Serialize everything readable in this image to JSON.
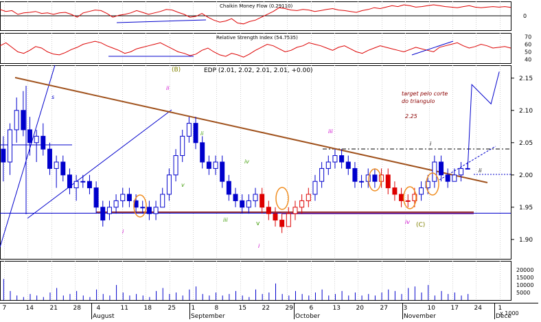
{
  "colors": {
    "grid": "#cfcfcf",
    "border": "#000000",
    "up_fill": "#ffffff",
    "up_stroke": "#0000cc",
    "down_fill": "#0000cc",
    "red": "#dd0000",
    "trend": "#a0521d",
    "support": "#9b3a3a",
    "purple_line": "#7030a0",
    "blue": "#0000cc",
    "circle": "#f08c1e",
    "magenta": "#cc00cc",
    "green": "#3a9a00",
    "olive": "#808000",
    "target_text": "#8b0000"
  },
  "chart_data": [
    {
      "id": "cmf",
      "type": "line",
      "title": "Chaikin Money Flow (0.29110)",
      "y_ticks": [
        "0"
      ],
      "ylim": [
        -0.5,
        0.5
      ],
      "series": [
        {
          "values": [
            0.22,
            0.15,
            0.18,
            0.05,
            0.1,
            0.12,
            0.15,
            0.08,
            0.1,
            0.05,
            0.1,
            0.12,
            0.05,
            -0.05,
            0.1,
            0.15,
            0.2,
            0.18,
            0.08,
            -0.05,
            0.02,
            0.05,
            0.1,
            0.18,
            0.12,
            0.05,
            0.1,
            0.15,
            0.22,
            0.2,
            0.12,
            0.05,
            -0.05,
            -0.02,
            0.08,
            -0.05,
            -0.15,
            -0.22,
            -0.18,
            -0.1,
            -0.25,
            -0.28,
            -0.2,
            -0.15,
            -0.05,
            0.05,
            0.15,
            0.28,
            0.25,
            0.2,
            0.18,
            0.22,
            0.2,
            0.15,
            0.18,
            0.22,
            0.25,
            0.2,
            0.18,
            0.15,
            0.12,
            0.18,
            0.22,
            0.28,
            0.25,
            0.3,
            0.35,
            0.32,
            0.38,
            0.35,
            0.3,
            0.32,
            0.35,
            0.38,
            0.35,
            0.32,
            0.3,
            0.28,
            0.32,
            0.35,
            0.3,
            0.28,
            0.3,
            0.32,
            0.3,
            0.32,
            0.29
          ]
        }
      ]
    },
    {
      "id": "rsi",
      "type": "line",
      "title": "Relative Strength Index (54.7535)",
      "y_ticks": [
        "70",
        "60",
        "50",
        "40"
      ],
      "ylim": [
        35,
        75
      ],
      "series": [
        {
          "values": [
            58,
            62,
            56,
            50,
            48,
            52,
            57,
            55,
            50,
            47,
            46,
            49,
            53,
            56,
            60,
            62,
            64,
            62,
            58,
            55,
            52,
            48,
            50,
            54,
            56,
            58,
            60,
            62,
            58,
            54,
            50,
            48,
            45,
            47,
            52,
            55,
            50,
            46,
            44,
            48,
            46,
            43,
            47,
            52,
            56,
            60,
            58,
            54,
            50,
            52,
            56,
            58,
            62,
            60,
            58,
            55,
            52,
            56,
            58,
            54,
            50,
            48,
            52,
            55,
            58,
            56,
            54,
            52,
            50,
            53,
            56,
            54,
            52,
            50,
            56,
            58,
            60,
            62,
            58,
            55,
            57,
            60,
            58,
            55,
            56,
            57,
            55
          ]
        }
      ]
    },
    {
      "id": "price",
      "type": "candlestick",
      "title": "EDP (2.01, 2.02, 2.01, 2.01, +0.00)",
      "y_ticks": [
        "2.15",
        "2.10",
        "2.05",
        "2.00",
        "1.95",
        "1.90"
      ],
      "ylim": [
        1.87,
        2.17
      ],
      "x_tick_labels": [
        "7",
        "14",
        "21",
        "28",
        "4",
        "11",
        "18",
        "25",
        "1",
        "8",
        "15",
        "22",
        "29",
        "6",
        "13",
        "20",
        "27",
        "3",
        "10",
        "17",
        "24",
        "1"
      ],
      "month_labels": [
        "August",
        "September",
        "October",
        "November",
        "Dece"
      ],
      "candles": [
        [
          2.04,
          2.06,
          1.99,
          2.02
        ],
        [
          2.02,
          2.08,
          2.0,
          2.07
        ],
        [
          2.07,
          2.12,
          2.05,
          2.1
        ],
        [
          2.1,
          2.13,
          2.06,
          2.07
        ],
        [
          2.07,
          2.09,
          2.03,
          2.05
        ],
        [
          2.05,
          2.07,
          2.02,
          2.06
        ],
        [
          2.06,
          2.08,
          2.03,
          2.04
        ],
        [
          2.04,
          2.05,
          2.0,
          2.01
        ],
        [
          2.01,
          2.03,
          1.98,
          2.02
        ],
        [
          2.02,
          2.03,
          1.99,
          2.0
        ],
        [
          2.0,
          2.01,
          1.97,
          1.98
        ],
        [
          1.98,
          2.0,
          1.96,
          1.99
        ],
        [
          1.99,
          2.0,
          1.98,
          1.99
        ],
        [
          1.99,
          2.0,
          1.97,
          1.98
        ],
        [
          1.98,
          1.99,
          1.94,
          1.95
        ],
        [
          1.95,
          1.96,
          1.92,
          1.93
        ],
        [
          1.94,
          1.96,
          1.93,
          1.95
        ],
        [
          1.95,
          1.97,
          1.94,
          1.96
        ],
        [
          1.96,
          1.98,
          1.95,
          1.97
        ],
        [
          1.97,
          1.98,
          1.95,
          1.96
        ],
        [
          1.96,
          1.97,
          1.94,
          1.95
        ],
        [
          1.95,
          1.96,
          1.94,
          1.95
        ],
        [
          1.95,
          1.96,
          1.93,
          1.94
        ],
        [
          1.94,
          1.96,
          1.93,
          1.95
        ],
        [
          1.95,
          1.98,
          1.95,
          1.97
        ],
        [
          1.97,
          2.01,
          1.96,
          2.0
        ],
        [
          2.0,
          2.04,
          1.99,
          2.03
        ],
        [
          2.03,
          2.07,
          2.02,
          2.06
        ],
        [
          2.06,
          2.09,
          2.05,
          2.08
        ],
        [
          2.08,
          2.09,
          2.04,
          2.05
        ],
        [
          2.05,
          2.06,
          2.01,
          2.02
        ],
        [
          2.02,
          2.03,
          2.0,
          2.01
        ],
        [
          2.01,
          2.03,
          2.0,
          2.02
        ],
        [
          2.02,
          2.03,
          1.98,
          1.99
        ],
        [
          1.99,
          2.0,
          1.96,
          1.97
        ],
        [
          1.97,
          1.98,
          1.95,
          1.96
        ],
        [
          1.96,
          1.97,
          1.94,
          1.95
        ],
        [
          1.95,
          1.97,
          1.94,
          1.96
        ],
        [
          1.96,
          1.98,
          1.95,
          1.97
        ],
        [
          1.97,
          1.98,
          1.94,
          1.95
        ],
        [
          1.95,
          1.96,
          1.93,
          1.94
        ],
        [
          1.94,
          1.95,
          1.92,
          1.93
        ],
        [
          1.93,
          1.94,
          1.91,
          1.92
        ],
        [
          1.92,
          1.95,
          1.92,
          1.94
        ],
        [
          1.94,
          1.96,
          1.93,
          1.95
        ],
        [
          1.95,
          1.97,
          1.94,
          1.96
        ],
        [
          1.96,
          1.98,
          1.95,
          1.97
        ],
        [
          1.97,
          2.0,
          1.96,
          1.99
        ],
        [
          1.99,
          2.02,
          1.98,
          2.01
        ],
        [
          2.01,
          2.03,
          2.0,
          2.02
        ],
        [
          2.02,
          2.04,
          2.01,
          2.03
        ],
        [
          2.03,
          2.04,
          2.01,
          2.02
        ],
        [
          2.02,
          2.03,
          2.0,
          2.01
        ],
        [
          2.01,
          2.02,
          1.98,
          1.99
        ],
        [
          1.99,
          2.0,
          1.98,
          1.99
        ],
        [
          1.99,
          2.01,
          1.98,
          2.0
        ],
        [
          2.0,
          2.01,
          1.98,
          1.99
        ],
        [
          1.99,
          2.01,
          1.98,
          2.0
        ],
        [
          2.0,
          2.01,
          1.97,
          1.98
        ],
        [
          1.98,
          1.99,
          1.96,
          1.97
        ],
        [
          1.97,
          1.98,
          1.95,
          1.96
        ],
        [
          1.96,
          1.97,
          1.95,
          1.96
        ],
        [
          1.96,
          1.98,
          1.95,
          1.97
        ],
        [
          1.97,
          1.99,
          1.96,
          1.98
        ],
        [
          1.98,
          2.0,
          1.97,
          1.99
        ],
        [
          1.99,
          2.03,
          1.98,
          2.02
        ],
        [
          2.02,
          2.03,
          1.99,
          2.0
        ],
        [
          2.0,
          2.01,
          1.98,
          1.99
        ],
        [
          1.99,
          2.01,
          1.99,
          2.0
        ],
        [
          2.0,
          2.02,
          1.99,
          2.01
        ],
        [
          2.01,
          2.02,
          2.01,
          2.01
        ]
      ],
      "projection": [
        [
          2.01,
          2.01
        ],
        [
          2.13,
          2.14
        ],
        [
          2.11,
          2.11
        ],
        [
          2.16,
          2.16
        ]
      ],
      "annotations": {
        "wave_B": "(B)",
        "wave_C": "(C)",
        "target_line1": "target pelo corte",
        "target_line2": "do triangulo",
        "target_value": "2.25",
        "labels": [
          "s",
          "ii",
          "i",
          "ii",
          "iii",
          "iv",
          "i",
          "iii",
          "iv",
          "v",
          "i",
          "ii"
        ]
      }
    },
    {
      "id": "volume",
      "type": "bar",
      "y_ticks": [
        "20000",
        "15000",
        "10000",
        "5000"
      ],
      "unit_label": "x 1000",
      "ylim": [
        0,
        26000
      ],
      "values": [
        14000,
        6000,
        3000,
        2000,
        4000,
        3000,
        2000,
        5000,
        8000,
        3000,
        4000,
        6000,
        3000,
        2000,
        7000,
        4000,
        3000,
        10000,
        5000,
        3000,
        4000,
        3000,
        2000,
        6000,
        8000,
        4000,
        5000,
        3000,
        7000,
        9000,
        4000,
        3000,
        5000,
        3000,
        4000,
        6000,
        3000,
        2000,
        7000,
        4000,
        5000,
        11000,
        4000,
        3000,
        6000,
        4000,
        3000,
        5000,
        7000,
        3000,
        4000,
        6000,
        3000,
        5000,
        3000,
        4000,
        3000,
        5000,
        7000,
        6000,
        4000,
        8000,
        9000,
        5000,
        10000,
        3000,
        6000,
        4000,
        5000,
        3000,
        4000
      ]
    }
  ]
}
